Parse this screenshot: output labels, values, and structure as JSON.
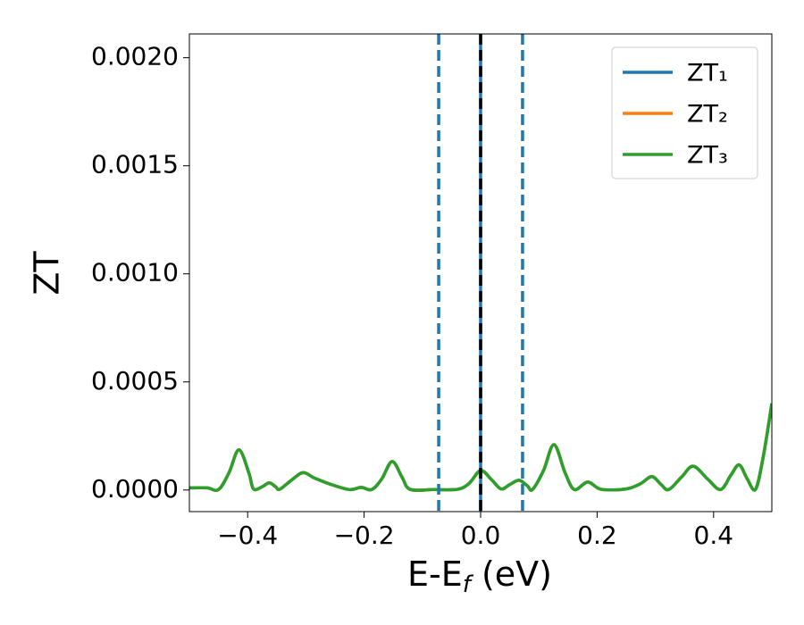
{
  "chart_data": {
    "type": "line",
    "xlabel": {
      "main": "E-E",
      "sub": "f",
      "rest": " (eV)"
    },
    "ylabel": "ZT",
    "x": [
      -0.5,
      -0.47,
      -0.45,
      -0.432,
      -0.415,
      -0.398,
      -0.39,
      -0.375,
      -0.363,
      -0.352,
      -0.345,
      -0.325,
      -0.305,
      -0.285,
      -0.256,
      -0.225,
      -0.205,
      -0.187,
      -0.17,
      -0.152,
      -0.135,
      -0.121,
      -0.08,
      -0.04,
      -0.02,
      0,
      0.018,
      0.035,
      0.05,
      0.066,
      0.08,
      0.089,
      0.108,
      0.126,
      0.145,
      0.161,
      0.184,
      0.207,
      0.25,
      0.275,
      0.294,
      0.31,
      0.323,
      0.345,
      0.365,
      0.39,
      0.412,
      0.43,
      0.444,
      0.458,
      0.472,
      0.485,
      0.5
    ],
    "series": [
      {
        "name": "ZT₁",
        "color": "#1f77b4",
        "values": [
          1e-05,
          1e-05,
          2e-06,
          8e-05,
          0.000186,
          8e-05,
          5e-06,
          1.5e-05,
          3.3e-05,
          1.5e-05,
          3e-06,
          4.5e-05,
          8e-05,
          5.5e-05,
          2.5e-05,
          2e-06,
          1.2e-05,
          2e-06,
          5e-05,
          0.000132,
          6e-05,
          3e-06,
          2e-06,
          3e-06,
          3e-05,
          9e-05,
          5e-05,
          5e-06,
          2.5e-05,
          4.5e-05,
          2e-05,
          2e-06,
          9e-05,
          0.00021,
          8e-05,
          2e-06,
          3.7e-05,
          3e-06,
          5e-06,
          3e-05,
          6.2e-05,
          2.5e-05,
          2e-06,
          6e-05,
          0.00011,
          5e-05,
          2e-06,
          7e-05,
          0.000116,
          5e-05,
          3e-06,
          0.00015,
          0.0004
        ]
      },
      {
        "name": "ZT₂",
        "color": "#ff7f0e",
        "values": [
          1e-05,
          1e-05,
          2e-06,
          8e-05,
          0.000186,
          8e-05,
          5e-06,
          1.5e-05,
          3.3e-05,
          1.5e-05,
          3e-06,
          4.5e-05,
          8e-05,
          5.5e-05,
          2.5e-05,
          2e-06,
          1.2e-05,
          2e-06,
          5e-05,
          0.000132,
          6e-05,
          3e-06,
          2e-06,
          3e-06,
          3e-05,
          9e-05,
          5e-05,
          5e-06,
          2.5e-05,
          4.5e-05,
          2e-05,
          2e-06,
          9e-05,
          0.00021,
          8e-05,
          2e-06,
          3.7e-05,
          3e-06,
          5e-06,
          3e-05,
          6.2e-05,
          2.5e-05,
          2e-06,
          6e-05,
          0.00011,
          5e-05,
          2e-06,
          7e-05,
          0.000116,
          5e-05,
          3e-06,
          0.00015,
          0.0004
        ]
      },
      {
        "name": "ZT₃",
        "color": "#2ca02c",
        "values": [
          1e-05,
          1e-05,
          2e-06,
          8e-05,
          0.000186,
          8e-05,
          5e-06,
          1.5e-05,
          3.3e-05,
          1.5e-05,
          3e-06,
          4.5e-05,
          8e-05,
          5.5e-05,
          2.5e-05,
          2e-06,
          1.2e-05,
          2e-06,
          5e-05,
          0.000132,
          6e-05,
          3e-06,
          2e-06,
          3e-06,
          3e-05,
          9e-05,
          5e-05,
          5e-06,
          2.5e-05,
          4.5e-05,
          2e-05,
          2e-06,
          9e-05,
          0.00021,
          8e-05,
          2e-06,
          3.7e-05,
          3e-06,
          5e-06,
          3e-05,
          6.2e-05,
          2.5e-05,
          2e-06,
          6e-05,
          0.00011,
          5e-05,
          2e-06,
          7e-05,
          0.000116,
          5e-05,
          3e-06,
          0.00015,
          0.0004
        ]
      }
    ],
    "vlines": [
      {
        "x": -0.072,
        "color": "#1f77b4",
        "dashed": true
      },
      {
        "x": 0.072,
        "color": "#1f77b4",
        "dashed": true
      },
      {
        "x": 0,
        "color": "#1f77b4",
        "dashed": false
      },
      {
        "x": 0,
        "color": "#000000",
        "dashed": true
      }
    ],
    "xlim": [
      -0.5,
      0.5
    ],
    "xticks": [
      {
        "value": -0.4,
        "label": "−0.4"
      },
      {
        "value": -0.2,
        "label": "−0.2"
      },
      {
        "value": 0,
        "label": "0.0"
      },
      0.2,
      0.4
    ],
    "ylim": [
      -0.0001,
      0.00211
    ],
    "yticks": [
      {
        "value": 0,
        "label": "0.0000"
      },
      {
        "value": 0.0005,
        "label": "0.0005"
      },
      {
        "value": 0.001,
        "label": "0.0010"
      },
      {
        "value": 0.0015,
        "label": "0.0015"
      },
      {
        "value": 0.002,
        "label": "0.0020"
      }
    ],
    "legend": "upper right"
  }
}
